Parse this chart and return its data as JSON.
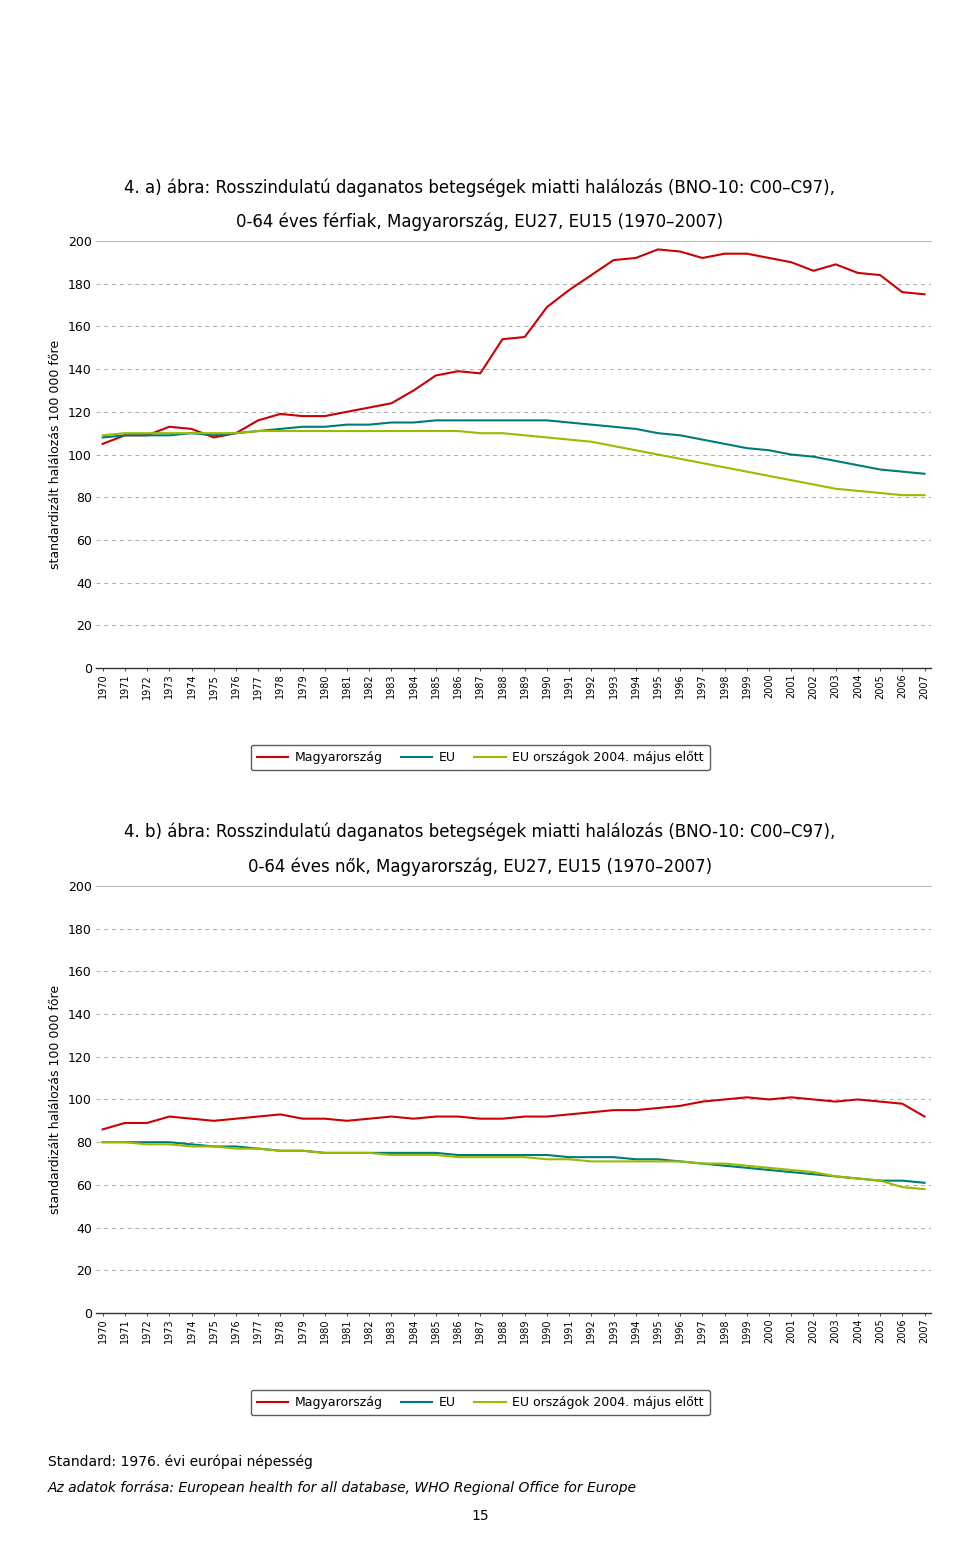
{
  "title_a_line1": "4. a) ábra: Rosszindulatú daganatos betegségek miatti halálozás (BNO-10: C00–C97),",
  "title_a_line2": "0-64 éves férfiak, Magyarország, EU27, EU15 (1970–2007)",
  "title_b_line1": "4. b) ábra: Rosszindulatú daganatos betegségek miatti halálozás (BNO-10: C00–C97),",
  "title_b_line2": "0-64 éves nők, Magyarország, EU27, EU15 (1970–2007)",
  "ylabel": "standardizált halálozás 100 000 főre",
  "footnote1": "Standard: 1976. évi európai népesség",
  "footnote2": "Az adatok forrása: European health for all database, WHO Regional Office for Europe",
  "page_number": "15",
  "years": [
    1970,
    1971,
    1972,
    1973,
    1974,
    1975,
    1976,
    1977,
    1978,
    1979,
    1980,
    1981,
    1982,
    1983,
    1984,
    1985,
    1986,
    1987,
    1988,
    1989,
    1990,
    1991,
    1992,
    1993,
    1994,
    1995,
    1996,
    1997,
    1998,
    1999,
    2000,
    2001,
    2002,
    2003,
    2004,
    2005,
    2006,
    2007
  ],
  "legend_labels": [
    "Magyarország",
    "EU",
    "EU országok 2004. május előtt"
  ],
  "colors": [
    "#cc0000",
    "#007b7b",
    "#99bb00"
  ],
  "chart_a": {
    "magyarorszag": [
      105,
      109,
      109,
      113,
      112,
      108,
      110,
      116,
      119,
      118,
      118,
      120,
      122,
      124,
      130,
      137,
      139,
      138,
      154,
      155,
      169,
      177,
      184,
      191,
      192,
      196,
      195,
      192,
      194,
      194,
      192,
      190,
      186,
      189,
      185,
      184,
      176,
      175
    ],
    "eu27": [
      108,
      109,
      109,
      109,
      110,
      109,
      110,
      111,
      112,
      113,
      113,
      114,
      114,
      115,
      115,
      116,
      116,
      116,
      116,
      116,
      116,
      115,
      114,
      113,
      112,
      110,
      109,
      107,
      105,
      103,
      102,
      100,
      99,
      97,
      95,
      93,
      92,
      91
    ],
    "eu15": [
      109,
      110,
      110,
      110,
      110,
      110,
      110,
      111,
      111,
      111,
      111,
      111,
      111,
      111,
      111,
      111,
      111,
      110,
      110,
      109,
      108,
      107,
      106,
      104,
      102,
      100,
      98,
      96,
      94,
      92,
      90,
      88,
      86,
      84,
      83,
      82,
      81,
      81
    ]
  },
  "chart_b": {
    "magyarorszag": [
      86,
      89,
      89,
      92,
      91,
      90,
      91,
      92,
      93,
      91,
      91,
      90,
      91,
      92,
      91,
      92,
      92,
      91,
      91,
      92,
      92,
      93,
      94,
      95,
      95,
      96,
      97,
      99,
      100,
      101,
      100,
      101,
      100,
      99,
      100,
      99,
      98,
      92
    ],
    "eu27": [
      80,
      80,
      80,
      80,
      79,
      78,
      78,
      77,
      76,
      76,
      75,
      75,
      75,
      75,
      75,
      75,
      74,
      74,
      74,
      74,
      74,
      73,
      73,
      73,
      72,
      72,
      71,
      70,
      69,
      68,
      67,
      66,
      65,
      64,
      63,
      62,
      62,
      61
    ],
    "eu15": [
      80,
      80,
      79,
      79,
      78,
      78,
      77,
      77,
      76,
      76,
      75,
      75,
      75,
      74,
      74,
      74,
      73,
      73,
      73,
      73,
      72,
      72,
      71,
      71,
      71,
      71,
      71,
      70,
      70,
      69,
      68,
      67,
      66,
      64,
      63,
      62,
      59,
      58
    ]
  },
  "ylim": [
    0,
    200
  ],
  "yticks": [
    0,
    20,
    40,
    60,
    80,
    100,
    120,
    140,
    160,
    180,
    200
  ],
  "background_color": "#ffffff",
  "grid_color": "#aaaaaa",
  "title_fontsize": 12,
  "ylabel_fontsize": 9,
  "tick_fontsize": 9,
  "xtick_fontsize": 7,
  "legend_fontsize": 9,
  "footnote_fontsize": 10
}
